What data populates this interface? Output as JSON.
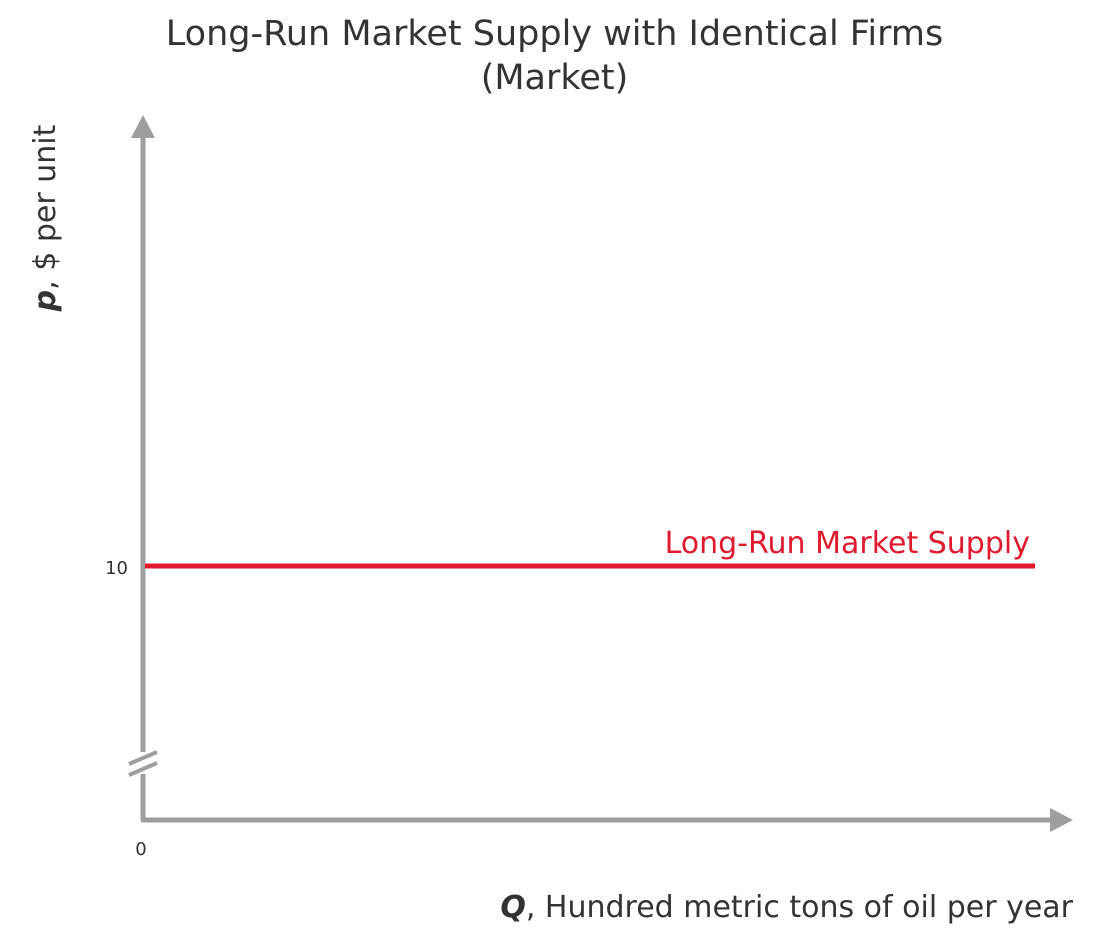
{
  "chart_data": {
    "type": "line",
    "title": "Long-Run Market Supply with Identical Firms",
    "subtitle": "(Market)",
    "xlabel_var": "Q",
    "xlabel_rest": ", Hundred metric tons of oil per year",
    "ylabel_var": "p",
    "ylabel_rest": ", $ per unit",
    "origin_label": "0",
    "y_axis_break": true,
    "y_ticks": [
      {
        "value": 10,
        "label": "10"
      }
    ],
    "series": [
      {
        "name": "Long-Run Market Supply",
        "color": "#e0192e",
        "style": "horizontal",
        "y": 10
      }
    ],
    "colors": {
      "axis": "#9e9e9e",
      "text": "#333333",
      "supply": "#e0192e"
    }
  }
}
